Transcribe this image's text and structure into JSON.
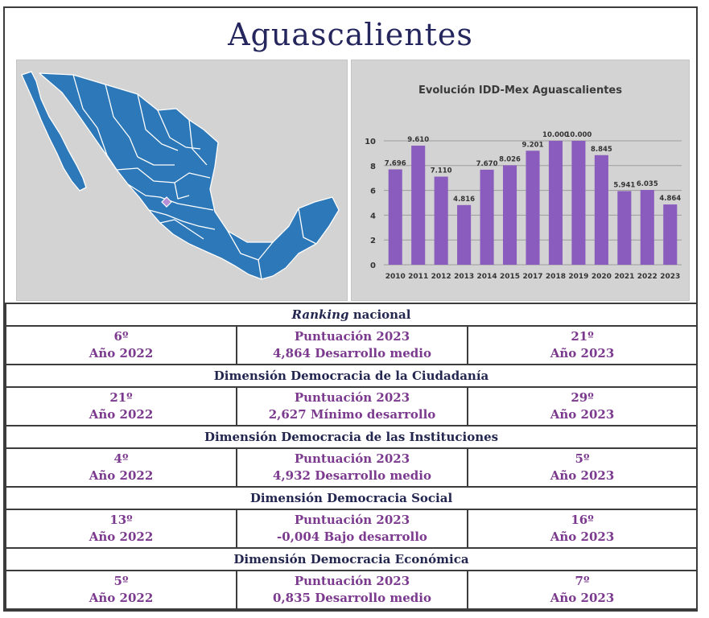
{
  "title": "Aguascalientes",
  "map": {
    "highlighted_state": "Aguascalientes",
    "fill_color": "#2d78b8",
    "highlight_color": "#b58fd6"
  },
  "chart_data": {
    "type": "bar",
    "title": "Evolución IDD-Mex Aguascalientes",
    "categories": [
      "2010",
      "2011",
      "2012",
      "2013",
      "2014",
      "2015",
      "2017",
      "2018",
      "2019",
      "2020",
      "2021",
      "2022",
      "2023"
    ],
    "values": [
      7.696,
      9.61,
      7.11,
      4.816,
      7.67,
      8.026,
      9.201,
      10.0,
      10.0,
      8.845,
      5.941,
      6.035,
      4.864
    ],
    "labels": [
      "7.696",
      "9.610",
      "7.110",
      "4.816",
      "7.670",
      "8.026",
      "9.201",
      "10.000",
      "10.000",
      "8.845",
      "5.941",
      "6.035",
      "4.864"
    ],
    "ylim": [
      0,
      10
    ],
    "yticks": [
      "0",
      "2",
      "4",
      "6",
      "8",
      "10"
    ],
    "grid": true,
    "bar_color": "#8a5cbd"
  },
  "sections": [
    {
      "title_italic": "Ranking",
      "title_rest": " nacional",
      "left": [
        "6º",
        "Año 2022"
      ],
      "center": [
        "Puntuación 2023",
        "4,864 Desarrollo medio"
      ],
      "right": [
        "21º",
        "Año 2023"
      ]
    },
    {
      "title_italic": "",
      "title_rest": "Dimensión Democracia de la Ciudadanía",
      "left": [
        "21º",
        "Año 2022"
      ],
      "center": [
        "Puntuación 2023",
        "2,627 Mínimo desarrollo"
      ],
      "right": [
        "29º",
        "Año 2023"
      ]
    },
    {
      "title_italic": "",
      "title_rest": "Dimensión Democracia de las Instituciones",
      "left": [
        "4º",
        "Año 2022"
      ],
      "center": [
        "Puntuación 2023",
        "4,932 Desarrollo medio"
      ],
      "right": [
        "5º",
        "Año 2023"
      ]
    },
    {
      "title_italic": "",
      "title_rest": "Dimensión Democracia Social",
      "left": [
        "13º",
        "Año 2022"
      ],
      "center": [
        "Puntuación 2023",
        "-0,004 Bajo desarrollo"
      ],
      "right": [
        "16º",
        "Año 2023"
      ]
    },
    {
      "title_italic": "",
      "title_rest": "Dimensión Democracia Económica",
      "left": [
        "5º",
        "Año 2022"
      ],
      "center": [
        "Puntuación 2023",
        "0,835 Desarrollo medio"
      ],
      "right": [
        "7º",
        "Año 2023"
      ]
    }
  ]
}
